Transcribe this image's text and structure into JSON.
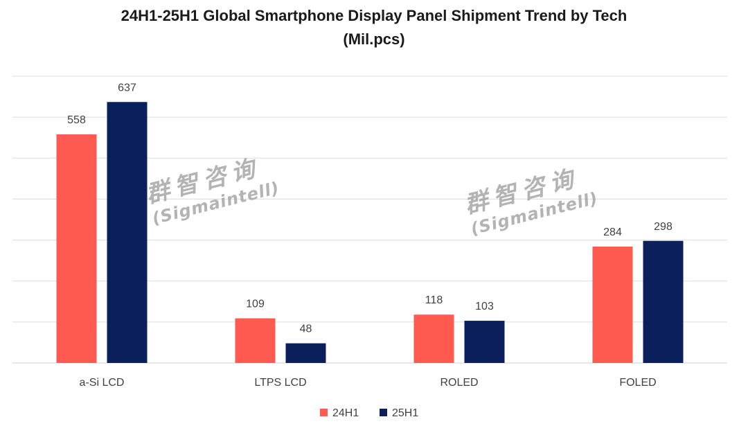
{
  "chart_data": {
    "type": "bar",
    "title": "24H1-25H1 Global Smartphone Display Panel Shipment Trend by Tech",
    "subtitle": "(Mil.pcs)",
    "categories": [
      "a-Si LCD",
      "LTPS LCD",
      "ROLED",
      "FOLED"
    ],
    "series": [
      {
        "name": "24H1",
        "color": "#ff5a50",
        "values": [
          558,
          109,
          118,
          284
        ]
      },
      {
        "name": "25H1",
        "color": "#0b1f5c",
        "values": [
          637,
          48,
          103,
          298
        ]
      }
    ],
    "ylim": [
      0,
      700
    ],
    "gridlines": [
      0,
      100,
      200,
      300,
      400,
      500,
      600,
      700
    ],
    "legend_position": "bottom-center",
    "xlabel": "",
    "ylabel": ""
  },
  "watermarks": [
    {
      "cn": "群智咨询",
      "en": "(Sigmaintell)"
    },
    {
      "cn": "群智咨询",
      "en": "(Sigmaintell)"
    }
  ]
}
